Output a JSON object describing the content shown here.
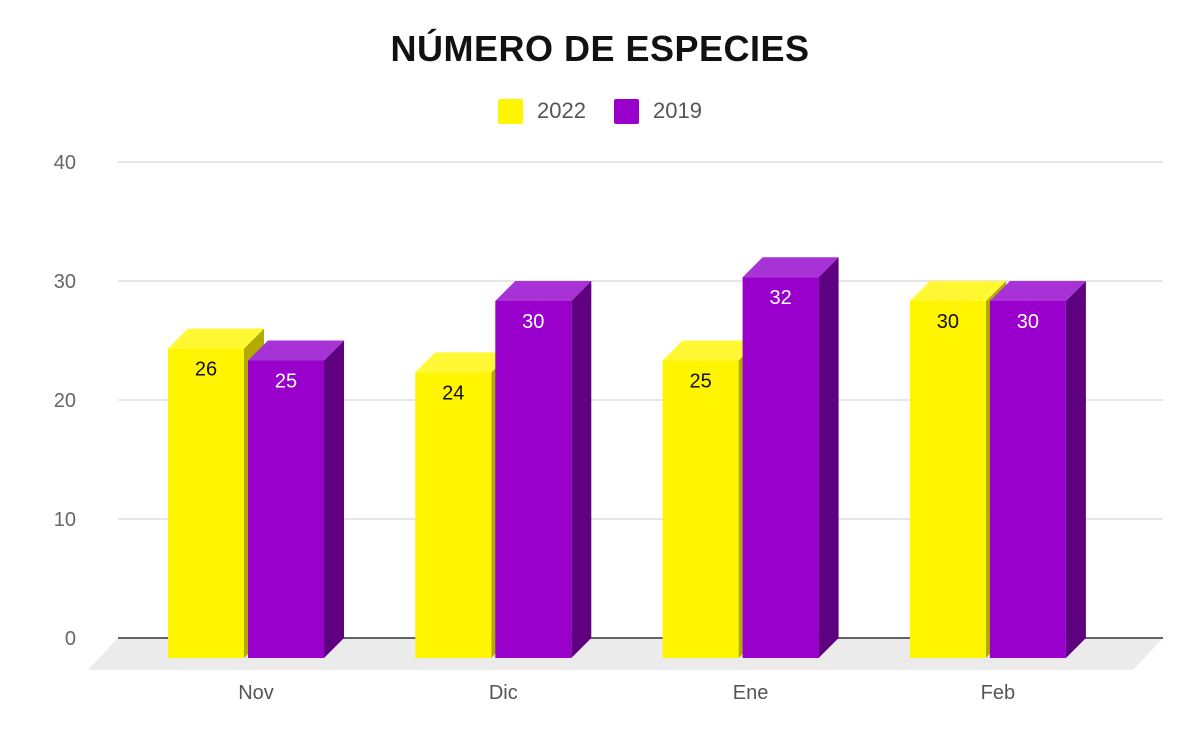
{
  "chart_data": {
    "type": "bar",
    "title": "NÚMERO DE ESPECIES",
    "xlabel": "",
    "ylabel": "",
    "categories": [
      "Nov",
      "Dic",
      "Ene",
      "Feb"
    ],
    "series": [
      {
        "name": "2022",
        "values": [
          26,
          24,
          25,
          30
        ],
        "color": "#FFF500",
        "side_color": "#B3AC00",
        "top_color": "#FFF833",
        "label_color": "#111111"
      },
      {
        "name": "2019",
        "values": [
          25,
          30,
          32,
          30
        ],
        "color": "#9900CC",
        "side_color": "#5E0080",
        "top_color": "#A733D6",
        "label_color": "#FFFFFF"
      }
    ],
    "ylim": [
      0,
      40
    ],
    "yticks": [
      0,
      10,
      20,
      30,
      40
    ],
    "grid": true,
    "legend_position": "top-center",
    "style": "3d-bar",
    "floor_color": "#EBEBEB"
  }
}
